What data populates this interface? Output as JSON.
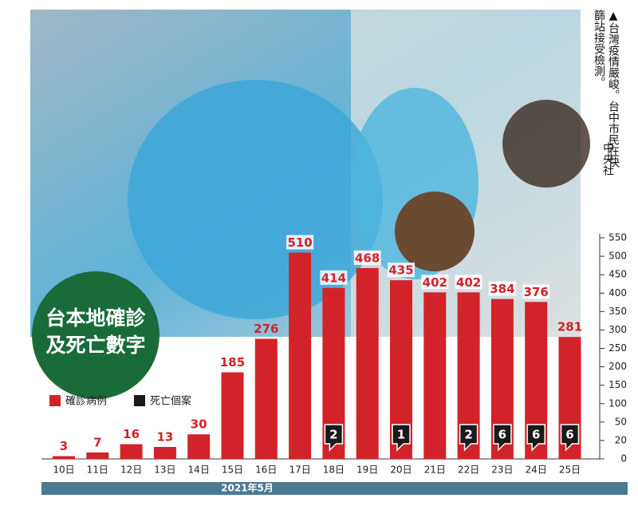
{
  "caption": "▲台灣疫情嚴峻。台中市民在快篩站接受檢測。",
  "credit": "中央社",
  "chart_data": {
    "type": "bar",
    "title": "台本地確診及死亡數字",
    "xlabel": "2021年5月",
    "categories": [
      "10日",
      "11日",
      "12日",
      "13日",
      "14日",
      "15日",
      "16日",
      "17日",
      "18日",
      "19日",
      "20日",
      "21日",
      "22日",
      "23日",
      "24日",
      "25日"
    ],
    "series": [
      {
        "name": "確診病例",
        "color": "#d2232a",
        "values": [
          3,
          7,
          16,
          13,
          30,
          185,
          276,
          510,
          414,
          468,
          435,
          402,
          402,
          384,
          376,
          281
        ]
      },
      {
        "name": "死亡個案",
        "color": "#1a1a1a",
        "values": [
          null,
          null,
          null,
          null,
          null,
          null,
          null,
          null,
          2,
          null,
          1,
          null,
          2,
          6,
          6,
          6
        ]
      }
    ],
    "ylim": [
      0,
      550
    ],
    "yticks": [
      0,
      20,
      50,
      100,
      150,
      200,
      250,
      300,
      350,
      400,
      450,
      500,
      550
    ]
  }
}
